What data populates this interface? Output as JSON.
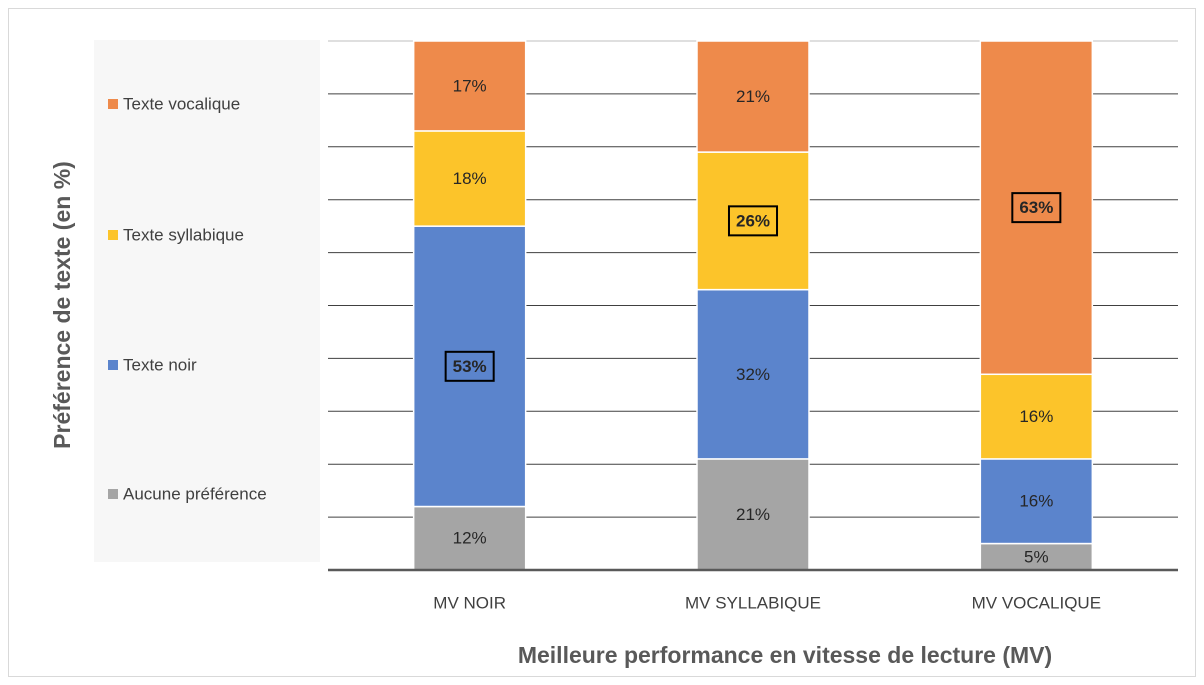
{
  "chart_data": {
    "type": "stacked_bar",
    "categories": [
      "MV NOIR",
      "MV SYLLABIQUE",
      "MV VOCALIQUE"
    ],
    "x_label": "Meilleure performance en vitesse de lecture (MV)",
    "y_label": "Préférence de texte (en %)",
    "ylim": [
      0,
      100
    ],
    "yticks": [
      0,
      10,
      20,
      30,
      40,
      50,
      60,
      70,
      80,
      90,
      100
    ],
    "grid": true,
    "legend": "left",
    "series": [
      {
        "name": "Aucune préférence",
        "color": "#a5a5a5",
        "values": [
          12,
          21,
          5
        ],
        "value_labels": [
          "12%",
          "21%",
          "5%"
        ],
        "emphasis": [
          false,
          false,
          false
        ]
      },
      {
        "name": "Texte noir",
        "color": "#5b84cc",
        "values": [
          53,
          32,
          16
        ],
        "value_labels": [
          "53%",
          "32%",
          "16%"
        ],
        "emphasis": [
          true,
          false,
          false
        ]
      },
      {
        "name": "Texte syllabique",
        "color": "#fcc42a",
        "values": [
          18,
          26,
          16
        ],
        "value_labels": [
          "18%",
          "26%",
          "16%"
        ],
        "emphasis": [
          false,
          true,
          false
        ]
      },
      {
        "name": "Texte vocalique",
        "color": "#ee8a4b",
        "values": [
          17,
          21,
          63
        ],
        "value_labels": [
          "17%",
          "21%",
          "63%"
        ],
        "emphasis": [
          false,
          false,
          true
        ]
      }
    ]
  }
}
